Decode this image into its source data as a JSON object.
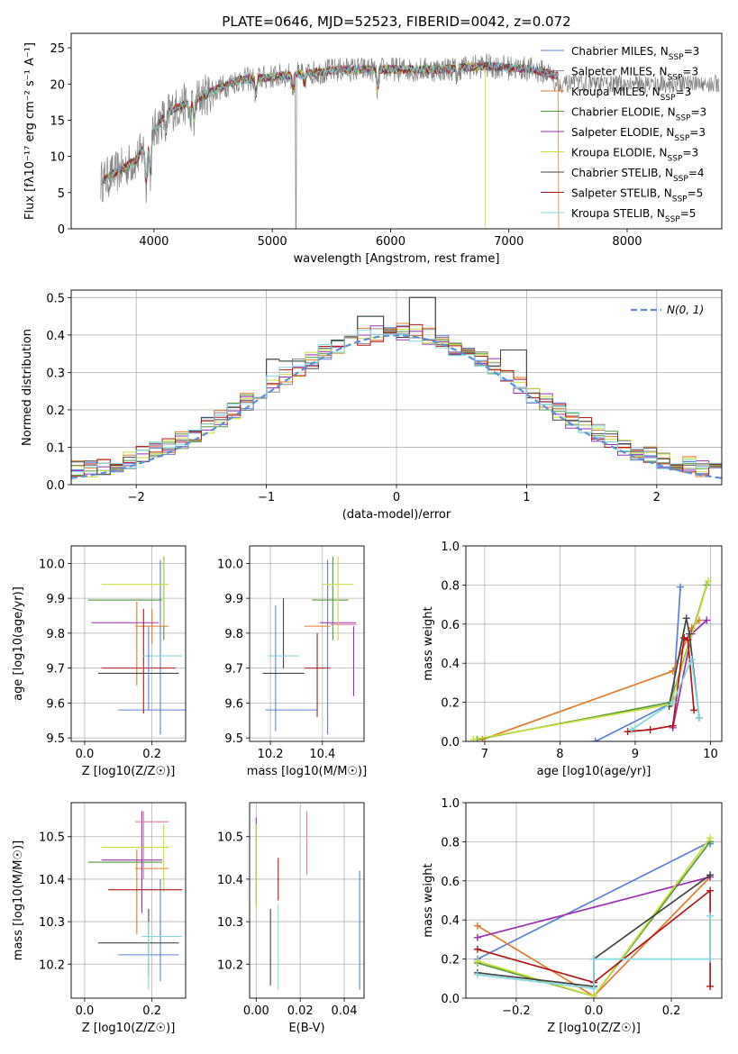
{
  "figure": {
    "title": "PLATE=0646, MJD=52523, FIBERID=0042, z=0.072"
  },
  "colors": {
    "Chabrier MILES": "#5b7fd6",
    "Salpeter MILES": "#888888",
    "Kroupa MILES": "#e07b2a",
    "Chabrier ELODIE": "#4f9a3a",
    "Salpeter ELODIE": "#9b2fb0",
    "Kroupa ELODIE": "#c9dc3a",
    "Chabrier STELIB": "#444444",
    "Salpeter STELIB": "#b01818",
    "Kroupa STELIB": "#7fd9e0",
    "pink": "#e07aa8",
    "normal": "#5b8fd6",
    "grid": "#b0b0b0"
  },
  "chart_data": [
    {
      "id": "spectrum",
      "type": "line",
      "xlabel": "wavelength [Angstrom, rest frame]",
      "ylabel": "Flux [fλ10⁻¹⁷ erg cm⁻² s⁻¹ A⁻¹]",
      "xlim": [
        3300,
        8800
      ],
      "ylim": [
        0,
        27
      ],
      "xticks": [
        "4000",
        "5000",
        "6000",
        "7000",
        "8000"
      ],
      "yticks": [
        "0",
        "5",
        "10",
        "15",
        "20",
        "25"
      ],
      "grid": false,
      "legend_position": "right",
      "continuum_x": [
        3550,
        3700,
        3850,
        4000,
        4100,
        4300,
        4500,
        4700,
        5000,
        5300,
        5600,
        6000,
        6400,
        6800,
        7200,
        7450
      ],
      "continuum_y": [
        6.5,
        8,
        9.5,
        13.5,
        16,
        17.5,
        19,
        20.5,
        21,
        21.5,
        22,
        22,
        22,
        22.5,
        22,
        21
      ],
      "legend": [
        {
          "label_prefix": "Chabrier MILES, N",
          "sub": "SSP",
          "label_suffix": "=3"
        },
        {
          "label_prefix": "Salpeter MILES, N",
          "sub": "SSP",
          "label_suffix": "=3"
        },
        {
          "label_prefix": "Kroupa MILES, N",
          "sub": "SSP",
          "label_suffix": "=3"
        },
        {
          "label_prefix": "Chabrier ELODIE, N",
          "sub": "SSP",
          "label_suffix": "=3"
        },
        {
          "label_prefix": "Salpeter ELODIE, N",
          "sub": "SSP",
          "label_suffix": "=3"
        },
        {
          "label_prefix": "Kroupa ELODIE, N",
          "sub": "SSP",
          "label_suffix": "=3"
        },
        {
          "label_prefix": "Chabrier STELIB, N",
          "sub": "SSP",
          "label_suffix": "=4"
        },
        {
          "label_prefix": "Salpeter STELIB, N",
          "sub": "SSP",
          "label_suffix": "=5"
        },
        {
          "label_prefix": "Kroupa STELIB, N",
          "sub": "SSP",
          "label_suffix": "=5"
        }
      ]
    },
    {
      "id": "residual-histogram",
      "type": "bar",
      "xlabel": "(data-model)/error",
      "ylabel": "Normed distribution",
      "xlim": [
        -2.5,
        2.5
      ],
      "ylim": [
        0,
        0.52
      ],
      "xticks": [
        "−2",
        "−1",
        "0",
        "1",
        "2"
      ],
      "xtick_values": [
        -2,
        -1,
        0,
        1,
        2
      ],
      "yticks": [
        "0.0",
        "0.1",
        "0.2",
        "0.3",
        "0.4",
        "0.5"
      ],
      "ytick_values": [
        0,
        0.1,
        0.2,
        0.3,
        0.4,
        0.5
      ],
      "grid": true,
      "bin_width": 0.1,
      "legend": "N(0, 1)",
      "annotations": [
        {
          "x": -0.9,
          "y": 0.335
        },
        {
          "x": -0.8,
          "y": 0.33
        },
        {
          "x": -0.2,
          "y": 0.45
        },
        {
          "x": 0.2,
          "y": 0.5
        },
        {
          "x": 0.9,
          "y": 0.36
        }
      ]
    },
    {
      "id": "age-vs-Z",
      "type": "scatter",
      "xlabel": "Z [log10(Z/Z☉)]",
      "ylabel": "age  [log10(age/yr)]",
      "xlim": [
        -0.04,
        0.3
      ],
      "ylim": [
        9.49,
        10.05
      ],
      "xticks": [
        "0.0",
        "0.2"
      ],
      "xtick_values": [
        0.0,
        0.2
      ],
      "yticks": [
        "9.5",
        "9.6",
        "9.7",
        "9.8",
        "9.9",
        "10.0"
      ],
      "ytick_values": [
        9.5,
        9.6,
        9.7,
        9.8,
        9.9,
        10.0
      ],
      "grid": true,
      "points": [
        {
          "s": "Chabrier MILES",
          "x": 0.2,
          "xe": 0.1,
          "y": 9.58,
          "ye": 0.0
        },
        {
          "s": "Chabrier MILES",
          "x": 0.225,
          "xe": 0.0,
          "y": 9.76,
          "ye": 0.25
        },
        {
          "s": "Kroupa MILES",
          "x": 0.2,
          "xe": 0.05,
          "y": 9.82,
          "ye": 0.05
        },
        {
          "s": "Kroupa MILES",
          "x": 0.155,
          "xe": 0.0,
          "y": 9.77,
          "ye": 0.12
        },
        {
          "s": "Chabrier ELODIE",
          "x": 0.12,
          "xe": 0.11,
          "y": 9.895,
          "ye": 0.0
        },
        {
          "s": "Chabrier ELODIE",
          "x": 0.235,
          "xe": 0.0,
          "y": 9.9,
          "ye": 0.12
        },
        {
          "s": "Salpeter ELODIE",
          "x": 0.12,
          "xe": 0.1,
          "y": 9.83,
          "ye": 0.0
        },
        {
          "s": "Kroupa ELODIE",
          "x": 0.15,
          "xe": 0.1,
          "y": 9.94,
          "ye": 0.0
        },
        {
          "s": "Kroupa ELODIE",
          "x": 0.235,
          "xe": 0.0,
          "y": 9.92,
          "ye": 0.1
        },
        {
          "s": "Chabrier STELIB",
          "x": 0.16,
          "xe": 0.12,
          "y": 9.685,
          "ye": 0.0
        },
        {
          "s": "Salpeter STELIB",
          "x": 0.16,
          "xe": 0.11,
          "y": 9.7,
          "ye": 0.0
        },
        {
          "s": "Salpeter STELIB",
          "x": 0.175,
          "xe": 0.0,
          "y": 9.72,
          "ye": 0.15
        },
        {
          "s": "Kroupa STELIB",
          "x": 0.23,
          "xe": 0.06,
          "y": 9.735,
          "ye": 0.0
        },
        {
          "s": "Chabrier MILES",
          "x": 0.19,
          "xe": 0.0,
          "y": 9.7,
          "ye": 0.12
        }
      ]
    },
    {
      "id": "age-vs-mass",
      "type": "scatter",
      "xlabel": "mass [log10(M/M☉)]",
      "ylabel": "",
      "xlim": [
        10.12,
        10.56
      ],
      "ylim": [
        9.49,
        10.05
      ],
      "xticks": [
        "10.2",
        "10.4"
      ],
      "xtick_values": [
        10.2,
        10.4
      ],
      "yticks": [
        "9.5",
        "9.6",
        "9.7",
        "9.8",
        "9.9",
        "10.0"
      ],
      "ytick_values": [
        9.5,
        9.6,
        9.7,
        9.8,
        9.9,
        10.0
      ],
      "grid": true,
      "points": [
        {
          "s": "Chabrier MILES",
          "x": 10.22,
          "xe": 0.0,
          "y": 9.7,
          "ye": 0.18
        },
        {
          "s": "Chabrier MILES",
          "x": 10.28,
          "xe": 0.1,
          "y": 9.58,
          "ye": 0.0
        },
        {
          "s": "Chabrier MILES",
          "x": 10.42,
          "xe": 0.0,
          "y": 9.76,
          "ye": 0.25
        },
        {
          "s": "Kroupa MILES",
          "x": 10.38,
          "xe": 0.05,
          "y": 9.82,
          "ye": 0.0
        },
        {
          "s": "Chabrier ELODIE",
          "x": 10.43,
          "xe": 0.07,
          "y": 9.895,
          "ye": 0.0
        },
        {
          "s": "Chabrier ELODIE",
          "x": 10.44,
          "xe": 0.0,
          "y": 9.9,
          "ye": 0.12
        },
        {
          "s": "Salpeter ELODIE",
          "x": 10.46,
          "xe": 0.07,
          "y": 9.83,
          "ye": 0.0
        },
        {
          "s": "Salpeter ELODIE",
          "x": 10.52,
          "xe": 0.0,
          "y": 9.72,
          "ye": 0.1
        },
        {
          "s": "Kroupa ELODIE",
          "x": 10.46,
          "xe": 0.0,
          "y": 9.9,
          "ye": 0.12
        },
        {
          "s": "Kroupa ELODIE",
          "x": 10.46,
          "xe": 0.06,
          "y": 9.94,
          "ye": 0.0
        },
        {
          "s": "Chabrier STELIB",
          "x": 10.25,
          "xe": 0.08,
          "y": 9.685,
          "ye": 0.0
        },
        {
          "s": "Chabrier STELIB",
          "x": 10.25,
          "xe": 0.0,
          "y": 9.8,
          "ye": 0.1
        },
        {
          "s": "Salpeter STELIB",
          "x": 10.38,
          "xe": 0.05,
          "y": 9.7,
          "ye": 0.0
        },
        {
          "s": "Salpeter STELIB",
          "x": 10.38,
          "xe": 0.0,
          "y": 9.68,
          "ye": 0.12
        },
        {
          "s": "Kroupa STELIB",
          "x": 10.25,
          "xe": 0.06,
          "y": 9.735,
          "ye": 0.0
        },
        {
          "s": "pink",
          "x": 10.48,
          "xe": 0.05,
          "y": 9.825,
          "ye": 0.0
        }
      ]
    },
    {
      "id": "mass-weight-vs-age",
      "type": "line",
      "xlabel": "age  [log10(age/yr)]",
      "ylabel": "mass weight",
      "xlim": [
        6.75,
        10.15
      ],
      "ylim": [
        0,
        1
      ],
      "xticks": [
        "7",
        "8",
        "9",
        "10"
      ],
      "xtick_values": [
        7,
        8,
        9,
        10
      ],
      "yticks": [
        "0.0",
        "0.2",
        "0.4",
        "0.6",
        "0.8",
        "1.0"
      ],
      "ytick_values": [
        0,
        0.2,
        0.4,
        0.6,
        0.8,
        1.0
      ],
      "grid": true,
      "series": [
        {
          "s": "Chabrier MILES",
          "x": [
            8.47,
            9.5,
            9.6
          ],
          "y": [
            0.0,
            0.2,
            0.79
          ]
        },
        {
          "s": "Kroupa MILES",
          "x": [
            6.97,
            9.5,
            9.75,
            9.85
          ],
          "y": [
            0.01,
            0.36,
            0.58,
            0.62
          ]
        },
        {
          "s": "Chabrier ELODIE",
          "x": [
            6.9,
            9.47,
            9.95
          ],
          "y": [
            0.01,
            0.2,
            0.8
          ]
        },
        {
          "s": "Salpeter ELODIE",
          "x": [
            9.5,
            9.75,
            9.95
          ],
          "y": [
            0.07,
            0.55,
            0.62
          ]
        },
        {
          "s": "Kroupa ELODIE",
          "x": [
            6.85,
            9.47,
            9.97
          ],
          "y": [
            0.01,
            0.19,
            0.82
          ]
        },
        {
          "s": "Chabrier STELIB",
          "x": [
            9.45,
            9.68,
            9.72,
            9.85
          ],
          "y": [
            0.18,
            0.63,
            0.55,
            0.12
          ]
        },
        {
          "s": "Salpeter STELIB",
          "x": [
            8.9,
            9.2,
            9.5,
            9.65,
            9.7,
            9.78
          ],
          "y": [
            0.05,
            0.06,
            0.08,
            0.53,
            0.52,
            0.16
          ]
        },
        {
          "s": "Kroupa STELIB",
          "x": [
            8.95,
            9.5,
            9.75,
            9.85
          ],
          "y": [
            0.06,
            0.2,
            0.42,
            0.12
          ]
        }
      ]
    },
    {
      "id": "mass-vs-Z",
      "type": "scatter",
      "xlabel": "Z [log10(Z/Z☉)]",
      "ylabel": "mass [log10(M/M☉)]",
      "xlim": [
        -0.04,
        0.3
      ],
      "ylim": [
        10.12,
        10.58
      ],
      "xticks": [
        "0.0",
        "0.2"
      ],
      "xtick_values": [
        0.0,
        0.2
      ],
      "yticks": [
        "10.2",
        "10.3",
        "10.4",
        "10.5"
      ],
      "ytick_values": [
        10.2,
        10.3,
        10.4,
        10.5
      ],
      "grid": true,
      "points": [
        {
          "s": "Chabrier MILES",
          "x": 0.19,
          "xe": 0.09,
          "y": 10.222,
          "ye": 0.0
        },
        {
          "s": "Chabrier MILES",
          "x": 0.225,
          "xe": 0.0,
          "y": 10.28,
          "ye": 0.12
        },
        {
          "s": "Kroupa MILES",
          "x": 0.2,
          "xe": 0.05,
          "y": 10.425,
          "ye": 0.0
        },
        {
          "s": "Kroupa MILES",
          "x": 0.155,
          "xe": 0.0,
          "y": 10.37,
          "ye": 0.1
        },
        {
          "s": "Chabrier ELODIE",
          "x": 0.12,
          "xe": 0.11,
          "y": 10.44,
          "ye": 0.0
        },
        {
          "s": "Salpeter ELODIE",
          "x": 0.14,
          "xe": 0.09,
          "y": 10.445,
          "ye": 0.0
        },
        {
          "s": "Salpeter ELODIE",
          "x": 0.17,
          "xe": 0.0,
          "y": 10.44,
          "ye": 0.12
        },
        {
          "s": "Kroupa ELODIE",
          "x": 0.15,
          "xe": 0.1,
          "y": 10.475,
          "ye": 0.0
        },
        {
          "s": "Kroupa ELODIE",
          "x": 0.235,
          "xe": 0.0,
          "y": 10.45,
          "ye": 0.08
        },
        {
          "s": "Chabrier STELIB",
          "x": 0.16,
          "xe": 0.12,
          "y": 10.25,
          "ye": 0.0
        },
        {
          "s": "Chabrier STELIB",
          "x": 0.19,
          "xe": 0.0,
          "y": 10.25,
          "ye": 0.08
        },
        {
          "s": "Salpeter STELIB",
          "x": 0.18,
          "xe": 0.11,
          "y": 10.375,
          "ye": 0.0
        },
        {
          "s": "Kroupa STELIB",
          "x": 0.23,
          "xe": 0.06,
          "y": 10.265,
          "ye": 0.0
        },
        {
          "s": "Kroupa STELIB",
          "x": 0.19,
          "xe": 0.0,
          "y": 10.22,
          "ye": 0.08
        },
        {
          "s": "pink",
          "x": 0.2,
          "xe": 0.05,
          "y": 10.535,
          "ye": 0.0
        },
        {
          "s": "pink",
          "x": 0.175,
          "xe": 0.0,
          "y": 10.48,
          "ye": 0.08
        }
      ]
    },
    {
      "id": "mass-vs-ebv",
      "type": "scatter",
      "xlabel": "E(B-V)",
      "ylabel": "",
      "xlim": [
        -0.003,
        0.049
      ],
      "ylim": [
        10.12,
        10.58
      ],
      "xticks": [
        "0.00",
        "0.02",
        "0.04"
      ],
      "xtick_values": [
        0.0,
        0.02,
        0.04
      ],
      "yticks": [
        "10.2",
        "10.3",
        "10.4",
        "10.5"
      ],
      "ytick_values": [
        10.2,
        10.3,
        10.4,
        10.5
      ],
      "grid": true,
      "points": [
        {
          "s": "Salpeter ELODIE",
          "x": 0.0,
          "xe": 0.0,
          "y": 10.445,
          "ye": 0.1
        },
        {
          "s": "Kroupa ELODIE",
          "x": 0.0,
          "xe": 0.0,
          "y": 10.43,
          "ye": 0.1
        },
        {
          "s": "Chabrier STELIB",
          "x": 0.0065,
          "xe": 0.0,
          "y": 10.24,
          "ye": 0.09
        },
        {
          "s": "Salpeter STELIB",
          "x": 0.01,
          "xe": 0.0,
          "y": 10.4,
          "ye": 0.05
        },
        {
          "s": "Kroupa STELIB",
          "x": 0.01,
          "xe": 0.0,
          "y": 10.24,
          "ye": 0.1
        },
        {
          "s": "pink",
          "x": 0.023,
          "xe": 0.0,
          "y": 10.485,
          "ye": 0.075
        },
        {
          "s": "Chabrier MILES",
          "x": 0.047,
          "xe": 0.0,
          "y": 10.28,
          "ye": 0.14
        }
      ]
    },
    {
      "id": "mass-weight-vs-Z",
      "type": "line",
      "xlabel": "Z [log10(Z/Z☉)]",
      "ylabel": "mass weight",
      "xlim": [
        -0.33,
        0.33
      ],
      "ylim": [
        0,
        1
      ],
      "xticks": [
        "−0.2",
        "0.0",
        "0.2"
      ],
      "xtick_values": [
        -0.2,
        0.0,
        0.2
      ],
      "yticks": [
        "0.0",
        "0.2",
        "0.4",
        "0.6",
        "0.8",
        "1.0"
      ],
      "ytick_values": [
        0,
        0.2,
        0.4,
        0.6,
        0.8,
        1.0
      ],
      "grid": true,
      "series": [
        {
          "s": "Chabrier MILES",
          "x": [
            -0.3,
            0.3,
            0.3
          ],
          "y": [
            0.2,
            0.8,
            0.79
          ]
        },
        {
          "s": "Kroupa MILES",
          "x": [
            -0.3,
            0.0,
            0.3
          ],
          "y": [
            0.37,
            0.01,
            0.62
          ]
        },
        {
          "s": "Chabrier ELODIE",
          "x": [
            -0.3,
            0.0,
            0.3
          ],
          "y": [
            0.18,
            0.01,
            0.8
          ]
        },
        {
          "s": "Salpeter ELODIE",
          "x": [
            -0.3,
            0.3
          ],
          "y": [
            0.31,
            0.62
          ]
        },
        {
          "s": "Kroupa ELODIE",
          "x": [
            -0.3,
            0.0,
            0.3
          ],
          "y": [
            0.19,
            0.01,
            0.82
          ]
        },
        {
          "s": "Chabrier STELIB",
          "x": [
            -0.3,
            0.0,
            0.0,
            0.3
          ],
          "y": [
            0.13,
            0.06,
            0.2,
            0.63
          ]
        },
        {
          "s": "Salpeter STELIB",
          "x": [
            -0.3,
            0.0,
            0.3,
            0.3
          ],
          "y": [
            0.25,
            0.08,
            0.55,
            0.06
          ]
        },
        {
          "s": "Kroupa STELIB",
          "x": [
            -0.3,
            0.0,
            0.0,
            0.3,
            0.3
          ],
          "y": [
            0.12,
            0.05,
            0.2,
            0.2,
            0.42
          ]
        }
      ]
    }
  ]
}
